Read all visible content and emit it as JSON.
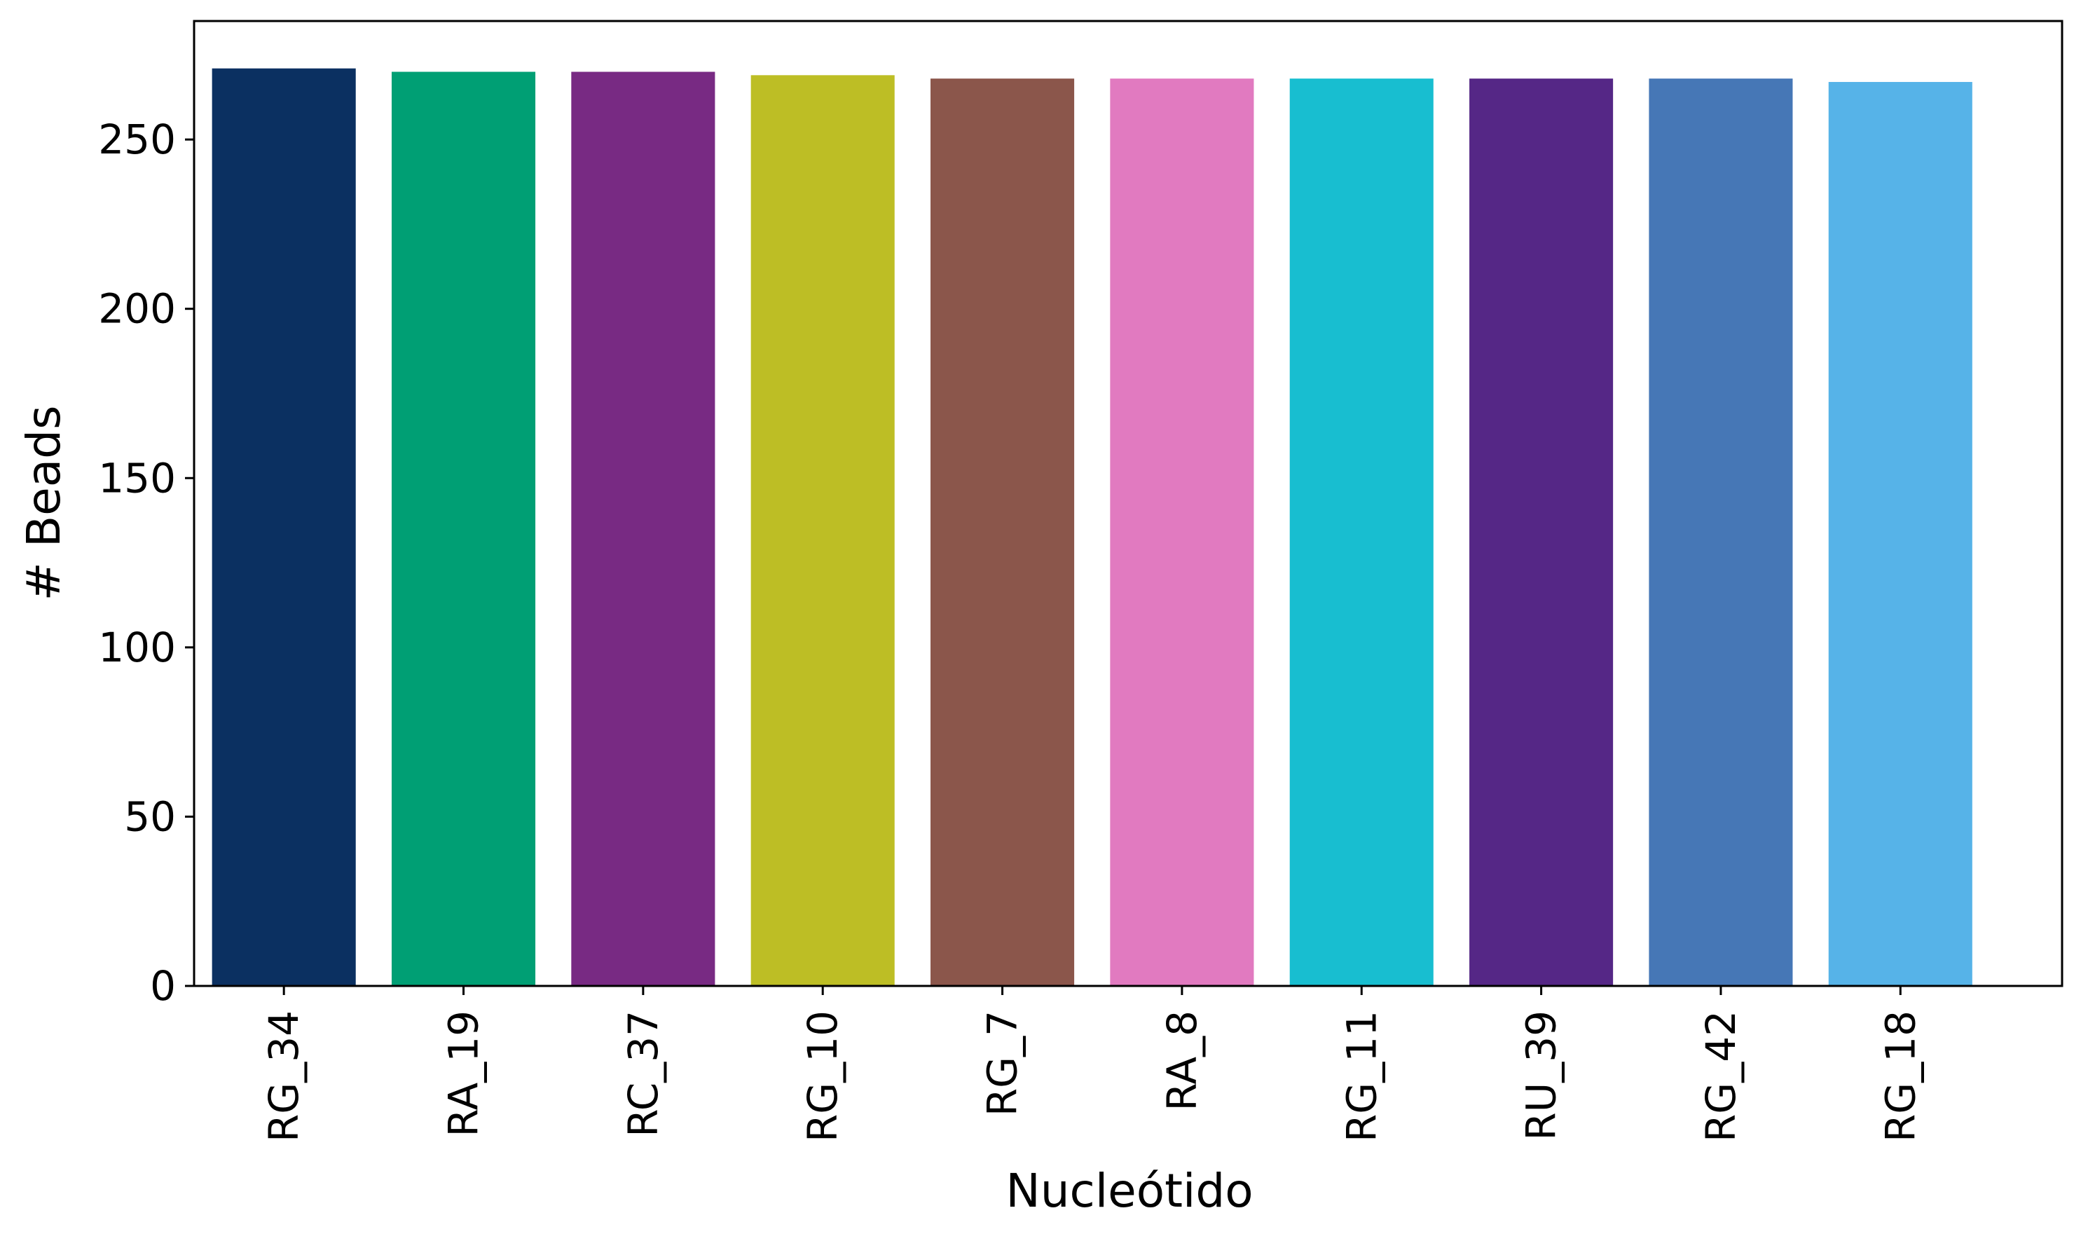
{
  "chart_data": {
    "type": "bar",
    "title": "",
    "xlabel": "Nucleótido",
    "ylabel": "# Beads",
    "categories": [
      "RG_34",
      "RA_19",
      "RC_37",
      "RG_10",
      "RG_7",
      "RA_8",
      "RG_11",
      "RU_39",
      "RG_42",
      "RG_18"
    ],
    "values": [
      271,
      270,
      270,
      269,
      268,
      268,
      268,
      268,
      268,
      267
    ],
    "colors": [
      "#0b3061",
      "#009f74",
      "#782a83",
      "#bdbe25",
      "#8b564b",
      "#e17ac0",
      "#18bed0",
      "#552786",
      "#4677b6",
      "#56b3e8"
    ],
    "ylim": [
      0,
      285
    ],
    "yticks": [
      0,
      50,
      100,
      150,
      200,
      250
    ],
    "ytick_labels": [
      "0",
      "50",
      "100",
      "150",
      "200",
      "250"
    ],
    "grid": false,
    "legend": "none"
  }
}
